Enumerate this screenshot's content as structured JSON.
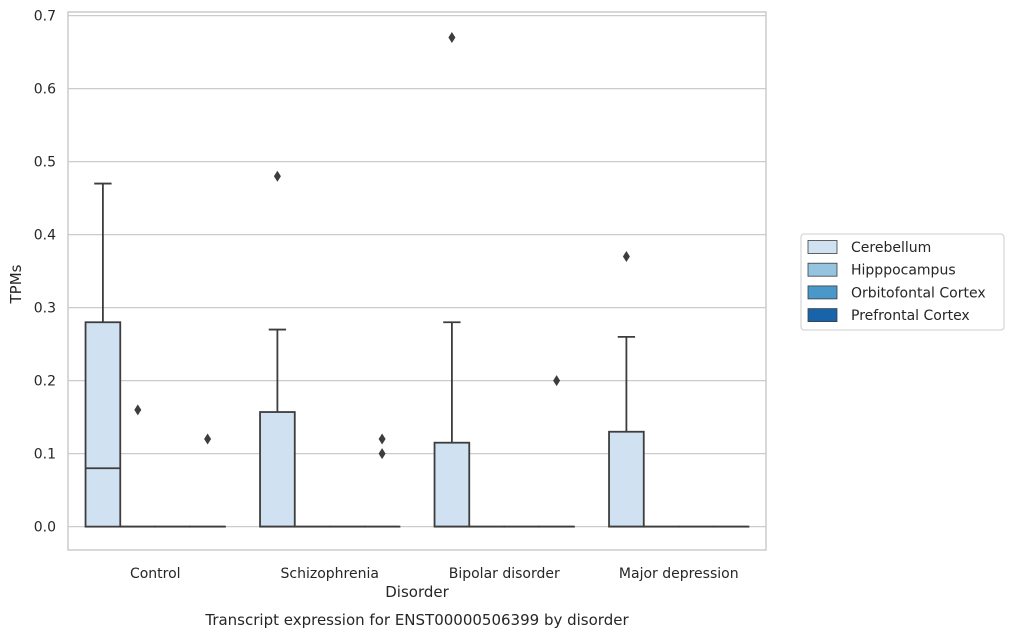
{
  "caption": "Transcript expression for ENST00000506399 by disorder",
  "chart_data": {
    "type": "box",
    "xlabel": "Disorder",
    "ylabel": "TPMs",
    "ylim": [
      -0.032,
      0.705
    ],
    "yticks": [
      "0.0",
      "0.1",
      "0.2",
      "0.3",
      "0.4",
      "0.5",
      "0.6",
      "0.7"
    ],
    "categories": [
      "Control",
      "Schizophrenia",
      "Bipolar disorder",
      "Major depression"
    ],
    "grid": true,
    "legend_position": "right",
    "series": [
      {
        "name": "Cerebellum",
        "color": "#d0e1f2",
        "boxes": [
          {
            "q1": 0.0,
            "median": 0.08,
            "q3": 0.28,
            "whisker_low": 0.0,
            "whisker_high": 0.47,
            "outliers": []
          },
          {
            "q1": 0.0,
            "median": 0.0,
            "q3": 0.157,
            "whisker_low": 0.0,
            "whisker_high": 0.27,
            "outliers": [
              0.48
            ]
          },
          {
            "q1": 0.0,
            "median": 0.0,
            "q3": 0.115,
            "whisker_low": 0.0,
            "whisker_high": 0.28,
            "outliers": [
              0.67
            ]
          },
          {
            "q1": 0.0,
            "median": 0.0,
            "q3": 0.13,
            "whisker_low": 0.0,
            "whisker_high": 0.26,
            "outliers": [
              0.37
            ]
          }
        ]
      },
      {
        "name": "Hipppocampus",
        "color": "#94c4df",
        "boxes": [
          {
            "q1": 0.0,
            "median": 0.0,
            "q3": 0.0,
            "whisker_low": 0.0,
            "whisker_high": 0.0,
            "outliers": [
              0.16
            ]
          },
          {
            "q1": 0.0,
            "median": 0.0,
            "q3": 0.0,
            "whisker_low": 0.0,
            "whisker_high": 0.0,
            "outliers": []
          },
          {
            "q1": 0.0,
            "median": 0.0,
            "q3": 0.0,
            "whisker_low": 0.0,
            "whisker_high": 0.0,
            "outliers": []
          },
          {
            "q1": 0.0,
            "median": 0.0,
            "q3": 0.0,
            "whisker_low": 0.0,
            "whisker_high": 0.0,
            "outliers": []
          }
        ]
      },
      {
        "name": "Orbitofontal Cortex",
        "color": "#4a98c9",
        "boxes": [
          {
            "q1": 0.0,
            "median": 0.0,
            "q3": 0.0,
            "whisker_low": 0.0,
            "whisker_high": 0.0,
            "outliers": []
          },
          {
            "q1": 0.0,
            "median": 0.0,
            "q3": 0.0,
            "whisker_low": 0.0,
            "whisker_high": 0.0,
            "outliers": []
          },
          {
            "q1": 0.0,
            "median": 0.0,
            "q3": 0.0,
            "whisker_low": 0.0,
            "whisker_high": 0.0,
            "outliers": []
          },
          {
            "q1": 0.0,
            "median": 0.0,
            "q3": 0.0,
            "whisker_low": 0.0,
            "whisker_high": 0.0,
            "outliers": []
          }
        ]
      },
      {
        "name": "Prefrontal Cortex",
        "color": "#1764ab",
        "boxes": [
          {
            "q1": 0.0,
            "median": 0.0,
            "q3": 0.0,
            "whisker_low": 0.0,
            "whisker_high": 0.0,
            "outliers": [
              0.12
            ]
          },
          {
            "q1": 0.0,
            "median": 0.0,
            "q3": 0.0,
            "whisker_low": 0.0,
            "whisker_high": 0.0,
            "outliers": [
              0.12,
              0.1
            ]
          },
          {
            "q1": 0.0,
            "median": 0.0,
            "q3": 0.0,
            "whisker_low": 0.0,
            "whisker_high": 0.0,
            "outliers": [
              0.2
            ]
          },
          {
            "q1": 0.0,
            "median": 0.0,
            "q3": 0.0,
            "whisker_low": 0.0,
            "whisker_high": 0.0,
            "outliers": []
          }
        ]
      }
    ]
  }
}
